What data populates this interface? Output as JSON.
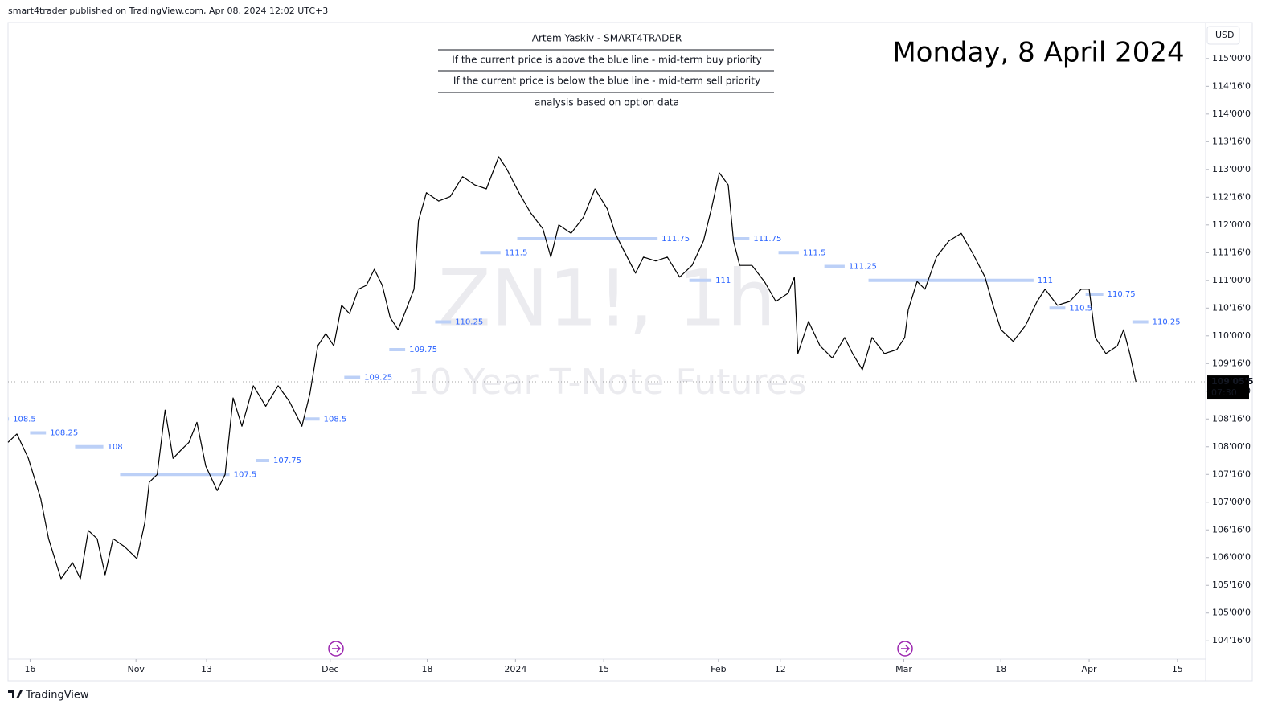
{
  "header": "smart4trader published on TradingView.com, Apr 08, 2024 12:02 UTC+3",
  "annotation_table": [
    "Artem Yaskiv - SMART4TRADER",
    "If the current price is above the blue line - mid-term buy priority",
    "If the current price is below the blue  line - mid-term sell priority",
    "analysis based on option data"
  ],
  "date_label": "Monday, 8 April 2024",
  "currency": "USD",
  "footer": "TradingView",
  "chart_data": {
    "type": "line",
    "title": "ZN1!, 1h",
    "subtitle": "10 Year T-Note Futures",
    "color": "#000000",
    "level_color": "#bcd0f7",
    "level_label_color": "#2962ff",
    "x": [
      -2.5,
      -1.5,
      -0.2,
      1.2,
      2.1,
      3.5,
      4.8,
      5.7,
      6.6,
      7.6,
      8.5,
      9.4,
      10.7,
      12.1,
      13.0,
      13.5,
      14.4,
      15.3,
      16.2,
      17.1,
      18.0,
      18.9,
      19.9,
      21.2,
      22.1,
      23.0,
      24.0,
      25.3,
      26.7,
      28.1,
      29.4,
      30.8,
      31.7,
      32.6,
      33.5,
      34.4,
      35.3,
      36.2,
      37.2,
      38.1,
      39.0,
      39.9,
      40.8,
      41.7,
      42.6,
      43.5,
      44.0,
      44.9,
      46.3,
      47.6,
      49.0,
      50.4,
      51.7,
      53.1,
      54.0,
      55.4,
      56.7,
      58.1,
      59.0,
      59.9,
      61.3,
      62.7,
      64.0,
      65.4,
      66.3,
      67.2,
      68.6,
      69.5,
      70.9,
      72.2,
      73.6,
      75.0,
      76.3,
      77.2,
      78.1,
      79.1,
      79.7,
      80.4,
      81.8,
      83.2,
      84.5,
      85.9,
      86.6,
      87.0,
      88.2,
      89.5,
      90.9,
      92.3,
      93.2,
      94.3,
      95.4,
      96.8,
      98.2,
      99.1,
      99.5,
      100.5,
      101.4,
      102.7,
      104.1,
      105.5,
      106.8,
      108.2,
      109.1,
      110.0,
      111.4,
      112.8,
      114.1,
      115.0,
      116.4,
      117.8,
      119.1,
      120.0,
      120.7,
      121.9,
      123.2,
      123.9,
      124.6,
      125.3
    ],
    "values": [
      108.08,
      108.23,
      107.79,
      107.07,
      106.34,
      105.62,
      105.91,
      105.62,
      106.49,
      106.34,
      105.69,
      106.34,
      106.2,
      105.98,
      106.63,
      107.36,
      107.5,
      108.66,
      107.79,
      107.94,
      108.08,
      108.44,
      107.65,
      107.21,
      107.5,
      108.88,
      108.37,
      109.1,
      108.73,
      109.1,
      108.81,
      108.37,
      108.95,
      109.82,
      110.04,
      109.82,
      110.55,
      110.4,
      110.84,
      110.91,
      111.2,
      110.91,
      110.33,
      110.11,
      110.47,
      110.84,
      112.07,
      112.58,
      112.43,
      112.51,
      112.87,
      112.72,
      112.65,
      113.23,
      113.01,
      112.58,
      112.22,
      111.93,
      111.42,
      112.0,
      111.85,
      112.14,
      112.65,
      112.29,
      111.85,
      111.56,
      111.13,
      111.42,
      111.35,
      111.42,
      111.06,
      111.27,
      111.71,
      112.29,
      112.94,
      112.72,
      111.71,
      111.27,
      111.27,
      110.98,
      110.62,
      110.77,
      111.06,
      109.68,
      110.26,
      109.82,
      109.6,
      109.97,
      109.68,
      109.39,
      109.97,
      109.68,
      109.75,
      109.97,
      110.47,
      110.98,
      110.84,
      111.42,
      111.71,
      111.85,
      111.49,
      111.06,
      110.55,
      110.11,
      109.9,
      110.19,
      110.62,
      110.84,
      110.55,
      110.62,
      110.84,
      110.84,
      109.97,
      109.68,
      109.82,
      110.11,
      109.68,
      109.17
    ],
    "levels": [
      {
        "value": 108.5,
        "x": [
          -2.5,
          -2.4
        ]
      },
      {
        "value": 108.25,
        "x": [
          0.0,
          1.8
        ]
      },
      {
        "value": 108,
        "x": [
          5.1,
          8.3
        ]
      },
      {
        "value": 107.5,
        "x": [
          10.2,
          22.6
        ]
      },
      {
        "value": 107.75,
        "x": [
          25.6,
          27.1
        ]
      },
      {
        "value": 108.5,
        "x": [
          31.1,
          32.8
        ]
      },
      {
        "value": 109.25,
        "x": [
          35.6,
          37.4
        ]
      },
      {
        "value": 109.75,
        "x": [
          40.7,
          42.5
        ]
      },
      {
        "value": 110.25,
        "x": [
          45.9,
          47.7
        ]
      },
      {
        "value": 111.5,
        "x": [
          51.0,
          53.3
        ]
      },
      {
        "value": 111.75,
        "x": [
          55.2,
          71.1
        ]
      },
      {
        "value": 111,
        "x": [
          74.7,
          77.2
        ]
      },
      {
        "value": 111.75,
        "x": [
          79.7,
          81.5
        ]
      },
      {
        "value": 111.5,
        "x": [
          84.8,
          87.1
        ]
      },
      {
        "value": 111.25,
        "x": [
          90.0,
          92.3
        ]
      },
      {
        "value": 111,
        "x": [
          95.0,
          113.7
        ]
      },
      {
        "value": 110.5,
        "x": [
          115.5,
          117.3
        ]
      },
      {
        "value": 110.75,
        "x": [
          119.6,
          121.6
        ]
      },
      {
        "value": 110.25,
        "x": [
          124.9,
          126.7
        ]
      }
    ],
    "last_price": {
      "value": 109.17,
      "label": "109'05'5"
    },
    "countdown": "07:30",
    "xlim": [
      -2.5,
      133.2
    ],
    "ylim": [
      104.17,
      115.65
    ],
    "xticks": [
      {
        "value": 0,
        "label": "16"
      },
      {
        "value": 12,
        "label": "Nov"
      },
      {
        "value": 20,
        "label": "13"
      },
      {
        "value": 34,
        "label": "Dec"
      },
      {
        "value": 45,
        "label": "18"
      },
      {
        "value": 55,
        "label": "2024"
      },
      {
        "value": 65,
        "label": "15"
      },
      {
        "value": 78,
        "label": "Feb"
      },
      {
        "value": 85,
        "label": "12"
      },
      {
        "value": 99,
        "label": "Mar"
      },
      {
        "value": 110,
        "label": "18"
      },
      {
        "value": 120,
        "label": "Apr"
      },
      {
        "value": 130,
        "label": "15"
      }
    ],
    "yticks": [
      {
        "value": 104.5,
        "label": "104'16'0"
      },
      {
        "value": 105,
        "label": "105'00'0"
      },
      {
        "value": 105.5,
        "label": "105'16'0"
      },
      {
        "value": 106,
        "label": "106'00'0"
      },
      {
        "value": 106.5,
        "label": "106'16'0"
      },
      {
        "value": 107,
        "label": "107'00'0"
      },
      {
        "value": 107.5,
        "label": "107'16'0"
      },
      {
        "value": 108,
        "label": "108'00'0"
      },
      {
        "value": 108.5,
        "label": "108'16'0"
      },
      {
        "value": 109,
        "label": "109'00'0"
      },
      {
        "value": 109.5,
        "label": "109'16'0"
      },
      {
        "value": 110,
        "label": "110'00'0"
      },
      {
        "value": 110.5,
        "label": "110'16'0"
      },
      {
        "value": 111,
        "label": "111'00'0"
      },
      {
        "value": 111.5,
        "label": "111'16'0"
      },
      {
        "value": 112,
        "label": "112'00'0"
      },
      {
        "value": 112.5,
        "label": "112'16'0"
      },
      {
        "value": 113,
        "label": "113'00'0"
      },
      {
        "value": 113.5,
        "label": "113'16'0"
      },
      {
        "value": 114,
        "label": "114'00'0"
      },
      {
        "value": 114.5,
        "label": "114'16'0"
      },
      {
        "value": 115,
        "label": "115'00'0"
      }
    ],
    "grid": false
  }
}
